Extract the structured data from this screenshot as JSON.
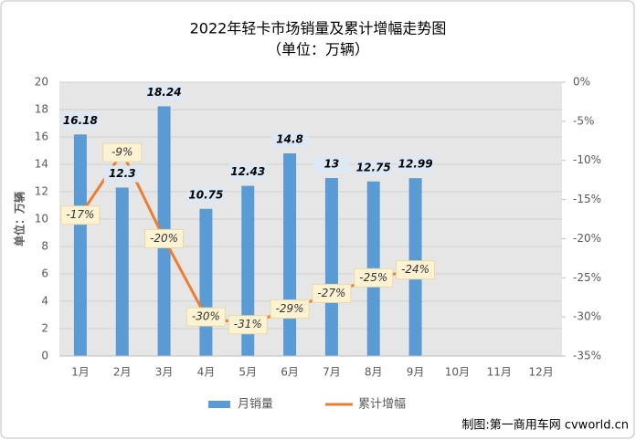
{
  "chart_data": {
    "type": "bar-line",
    "title": "2022年轻卡市场销量及累计增幅走势图",
    "subtitle": "（单位：万辆）",
    "y_label": "单位：万辆",
    "source": "制图:第一商用车网 cvworld.cn",
    "categories": [
      "1月",
      "2月",
      "3月",
      "4月",
      "5月",
      "6月",
      "7月",
      "8月",
      "9月",
      "10月",
      "11月",
      "12月"
    ],
    "series": [
      {
        "name": "月销量",
        "color": "#5b9bd5",
        "type": "bar",
        "values": [
          16.18,
          12.3,
          18.24,
          10.75,
          12.43,
          14.8,
          13,
          12.75,
          12.99,
          null,
          null,
          null
        ]
      },
      {
        "name": "累计增幅",
        "color": "#ed7d31",
        "type": "line",
        "axis": "y2",
        "values": [
          -17,
          -9,
          -20,
          -30,
          -31,
          -29,
          -27,
          -25,
          -24,
          null,
          null,
          null
        ],
        "value_labels": [
          "-17%",
          "-9%",
          "-20%",
          "-30%",
          "-31%",
          "-29%",
          "-27%",
          "-25%",
          "-24%",
          null,
          null,
          null
        ]
      }
    ],
    "ylim": [
      0,
      20
    ],
    "yticks": [
      0,
      2,
      4,
      6,
      8,
      10,
      12,
      14,
      16,
      18,
      20
    ],
    "y2lim": [
      -35,
      0
    ],
    "y2ticks": [
      {
        "value": 0,
        "label": "0%"
      },
      {
        "value": -5,
        "label": "-5%"
      },
      {
        "value": -10,
        "label": "-10%"
      },
      {
        "value": -15,
        "label": "-15%"
      },
      {
        "value": -20,
        "label": "-20%"
      },
      {
        "value": -25,
        "label": "-25%"
      },
      {
        "value": -30,
        "label": "-30%"
      },
      {
        "value": -35,
        "label": "-35%"
      }
    ],
    "grid": true
  }
}
